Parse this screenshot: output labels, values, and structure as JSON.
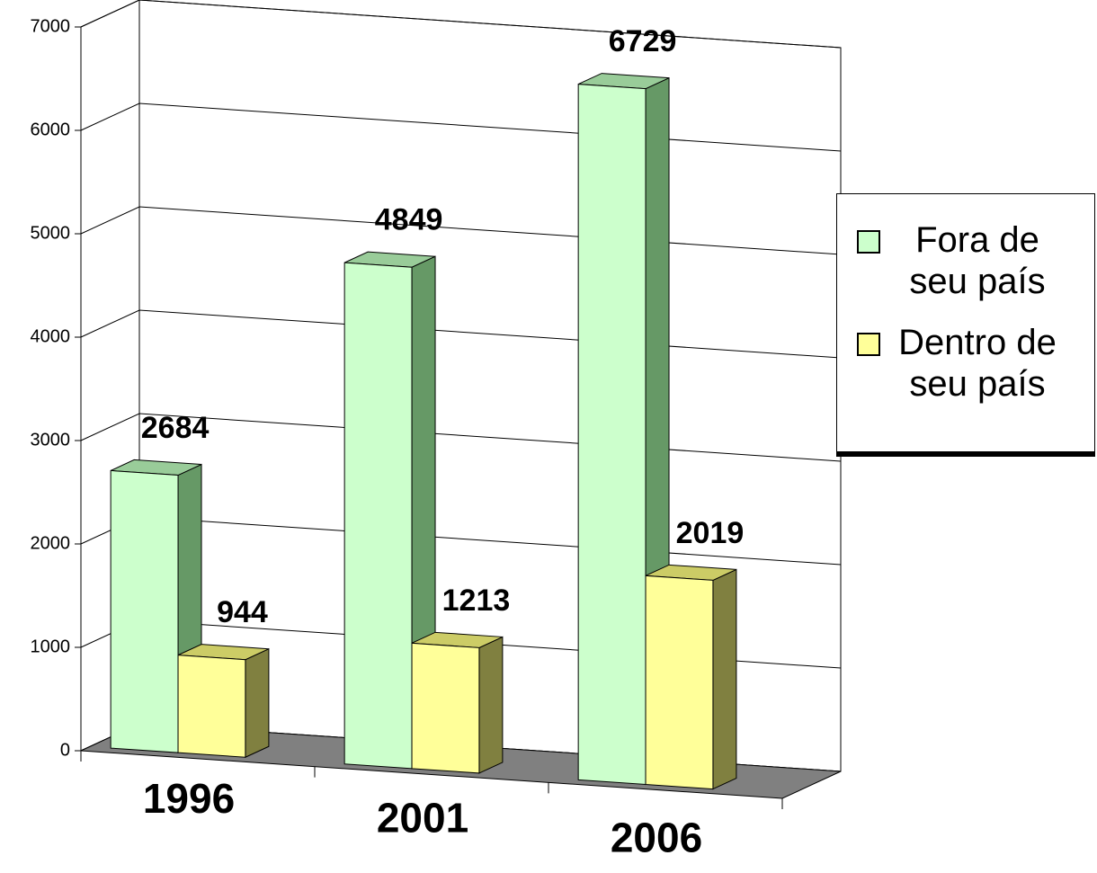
{
  "chart_data": {
    "type": "bar3d",
    "categories": [
      "1996",
      "2001",
      "2006"
    ],
    "series": [
      {
        "name": "Fora de seu país",
        "color": "#ccffcc",
        "values": [
          2684,
          4849,
          6729
        ]
      },
      {
        "name": "Dentro de seu país",
        "color": "#ffff99",
        "values": [
          944,
          1213,
          2019
        ]
      }
    ],
    "ylim": [
      0,
      7000
    ],
    "yticks": [
      0,
      1000,
      2000,
      3000,
      4000,
      5000,
      6000,
      7000
    ],
    "grid": true,
    "legend": "right"
  }
}
